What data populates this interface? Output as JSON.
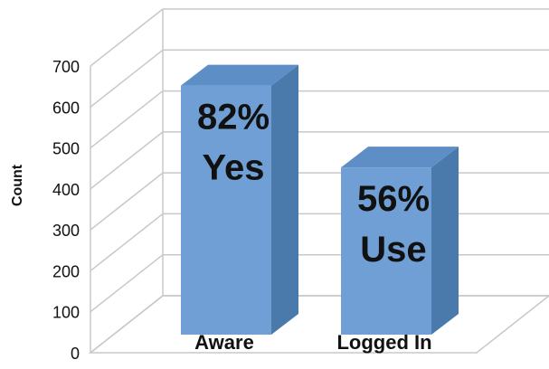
{
  "chart_data": {
    "type": "bar",
    "categories": [
      "Aware",
      "Logged In"
    ],
    "values": [
      670,
      470
    ],
    "bar_labels": [
      [
        "82%",
        "Yes"
      ],
      [
        "56%",
        "Use"
      ]
    ],
    "title": "",
    "xlabel": "",
    "ylabel": "Count",
    "ylim": [
      0,
      700
    ],
    "yticks": [
      0,
      100,
      200,
      300,
      400,
      500,
      600,
      700
    ],
    "grid": true,
    "style": "3d",
    "colors": {
      "bar_front": "#6f9fd4",
      "bar_side": "#4a7aab",
      "bar_top": "#5d8fc6",
      "grid": "#c8c8c8"
    }
  }
}
